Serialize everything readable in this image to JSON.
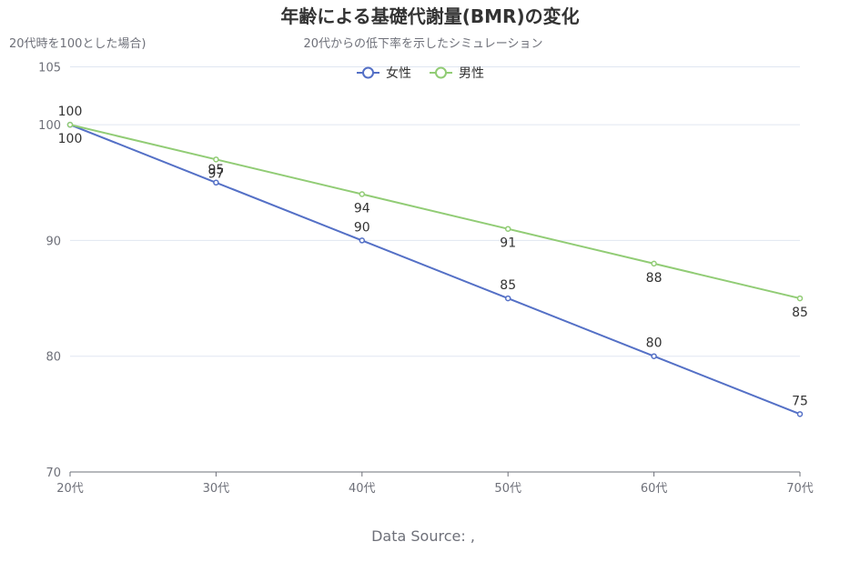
{
  "chart_data": {
    "type": "line",
    "title": "年齢による基礎代謝量(BMR)の変化",
    "subtitle": "20代からの低下率を示したシミュレーション",
    "ylabel": "20代時を100とした場合)",
    "xlabel": "",
    "categories": [
      "20代",
      "30代",
      "40代",
      "50代",
      "60代",
      "70代"
    ],
    "ylim": [
      70,
      105
    ],
    "yticks": [
      70,
      80,
      90,
      100,
      105
    ],
    "grid": true,
    "legend_position": "top-center",
    "series": [
      {
        "name": "女性",
        "color": "#5470c6",
        "values": [
          100,
          95,
          90,
          85,
          80,
          75
        ]
      },
      {
        "name": "男性",
        "color": "#91cc75",
        "values": [
          100,
          97,
          94,
          91,
          88,
          85
        ]
      }
    ],
    "source": "Data Source: ,"
  }
}
